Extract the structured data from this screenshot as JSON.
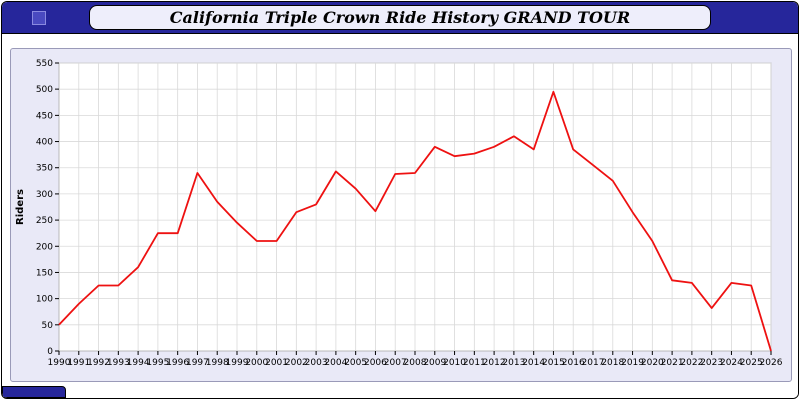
{
  "window": {
    "title": "California Triple Crown Ride History GRAND TOUR"
  },
  "chart_data": {
    "type": "line",
    "title": "California Triple Crown Ride History GRAND TOUR",
    "xlabel": "",
    "ylabel": "Riders",
    "ylim": [
      0,
      550
    ],
    "ytick_step": 50,
    "grid": true,
    "line_color": "#ee1111",
    "x": [
      1990,
      1991,
      1992,
      1993,
      1994,
      1995,
      1996,
      1997,
      1998,
      1999,
      2000,
      2001,
      2002,
      2003,
      2004,
      2005,
      2006,
      2007,
      2008,
      2009,
      2010,
      2011,
      2012,
      2013,
      2014,
      2015,
      2016,
      2017,
      2018,
      2019,
      2020,
      2021,
      2022,
      2023,
      2024,
      2025,
      2026
    ],
    "values": [
      50,
      90,
      125,
      125,
      160,
      225,
      225,
      340,
      285,
      245,
      210,
      210,
      265,
      280,
      343,
      310,
      267,
      338,
      340,
      390,
      372,
      377,
      390,
      410,
      385,
      495,
      385,
      355,
      325,
      265,
      210,
      135,
      130,
      82,
      130,
      125,
      0
    ]
  },
  "colors": {
    "title_bar": "#26269b",
    "panel_bg": "#e9e9f7",
    "plot_bg": "#ffffff",
    "grid": "#d9d9d9",
    "axis_text": "#000000"
  }
}
